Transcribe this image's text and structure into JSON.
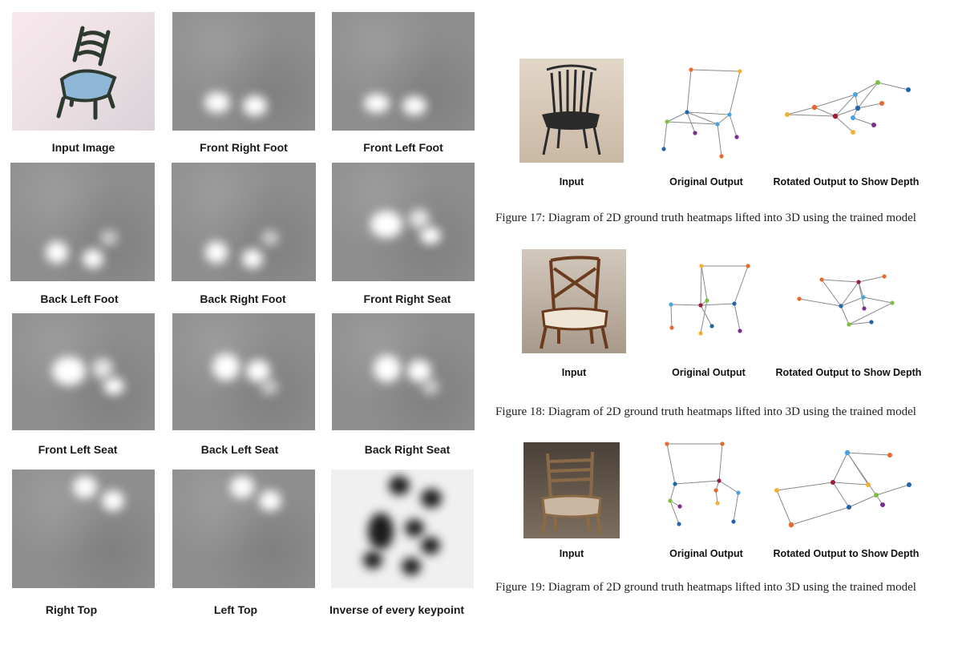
{
  "left_panel": {
    "labels": [
      "Input Image",
      "Front Right Foot",
      "Front Left Foot",
      "Back Left Foot",
      "Back Right Foot",
      "Front Right Seat",
      "Front Left Seat",
      "Back Left Seat",
      "Back Right Seat",
      "Right Top",
      "Left Top",
      "Inverse of every keypoint"
    ]
  },
  "figures": [
    {
      "input_label": "Input",
      "original_label": "Original Output",
      "rotated_label": "Rotated Output to Show Depth",
      "caption": "Figure 17: Diagram of 2D ground truth heatmaps lifted into 3D using the trained model"
    },
    {
      "input_label": "Input",
      "original_label": "Original Output",
      "rotated_label": "Rotated Output to Show Depth",
      "caption": "Figure 18: Diagram of 2D ground truth heatmaps lifted into 3D using the trained model"
    },
    {
      "input_label": "Input",
      "original_label": "Original Output",
      "rotated_label": "Rotated Output to Show Depth",
      "caption": "Figure 19: Diagram of 2D ground truth heatmaps lifted into 3D using the trained model"
    }
  ],
  "colors": {
    "orange": "#e8692b",
    "red": "#c9252b",
    "blue": "#2166ac",
    "lightblue": "#4aa3df",
    "green": "#7fbf3f",
    "purple": "#7b2d8e",
    "yellow": "#f2b134",
    "darkred": "#9c1d34"
  }
}
